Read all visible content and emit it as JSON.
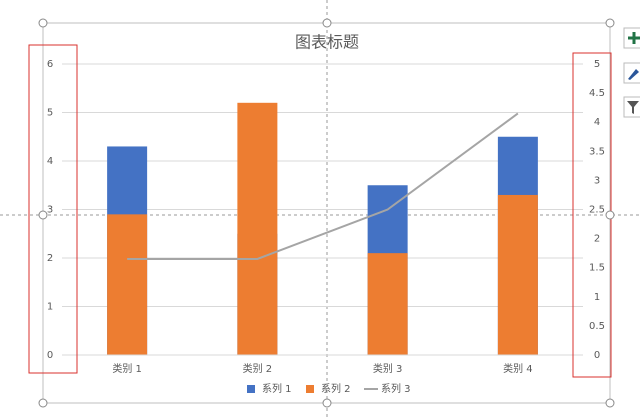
{
  "chart_data": {
    "type": "bar",
    "title": "图表标题",
    "categories": [
      "类别 1",
      "类别 2",
      "类别 3",
      "类别 4"
    ],
    "series": [
      {
        "name": "系列 1",
        "color": "#4472c4",
        "values": [
          4.3,
          2.5,
          3.5,
          4.5
        ]
      },
      {
        "name": "系列 2",
        "color": "#ed7d31",
        "values": [
          2.9,
          5.2,
          2.1,
          3.3
        ]
      },
      {
        "name": "系列 3",
        "color": "#a5a5a5",
        "type": "line",
        "axis": "y2",
        "values": [
          1.65,
          1.65,
          2.5,
          4.15
        ]
      }
    ],
    "ylim": [
      0,
      6
    ],
    "yticks": [
      0,
      1,
      2,
      3,
      4,
      5,
      6
    ],
    "y2lim": [
      0,
      5
    ],
    "y2ticks": [
      0,
      0.5,
      1,
      1.5,
      2,
      2.5,
      3,
      3.5,
      4,
      4.5,
      5
    ],
    "grid": true,
    "legend": "bottom"
  }
}
